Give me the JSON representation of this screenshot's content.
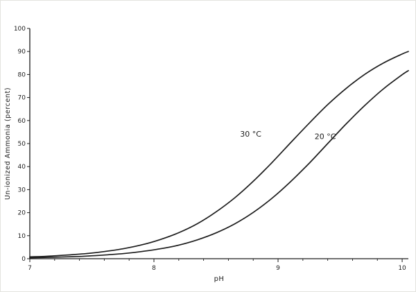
{
  "page": {
    "background": "#ffffff",
    "ink": "#1b1b1b"
  },
  "chart_data": {
    "type": "line",
    "title": "",
    "xlabel": "pH",
    "ylabel": "Un-ionized Ammonia (percent)",
    "xlim": [
      7.0,
      10.05
    ],
    "ylim": [
      0,
      100
    ],
    "x_ticks": [
      7,
      8,
      9,
      10
    ],
    "x_minor_tick_step": 0.2,
    "y_ticks": [
      0,
      10,
      20,
      30,
      40,
      50,
      60,
      70,
      80,
      90,
      100
    ],
    "grid": false,
    "legend_position": "inline labels beside curves",
    "x": [
      7.0,
      7.15,
      7.3,
      7.45,
      7.6,
      7.75,
      7.9,
      8.05,
      8.2,
      8.35,
      8.5,
      8.65,
      8.8,
      8.95,
      9.1,
      9.25,
      9.4,
      9.55,
      9.7,
      9.85,
      10.0,
      10.05
    ],
    "series": [
      {
        "name": "30 °C",
        "values": [
          0.8,
          1.1,
          1.6,
          2.2,
          3.1,
          4.3,
          6.0,
          8.3,
          11.3,
          15.2,
          20.3,
          26.4,
          33.6,
          41.7,
          50.3,
          58.8,
          66.9,
          74.0,
          80.1,
          85.0,
          88.9,
          90.0
        ],
        "label": {
          "text": "30 °C",
          "x": 8.78,
          "y": 53
        }
      },
      {
        "name": "20 °C",
        "values": [
          0.4,
          0.6,
          0.8,
          1.1,
          1.6,
          2.2,
          3.1,
          4.3,
          5.9,
          8.2,
          11.2,
          15.1,
          20.1,
          26.2,
          33.4,
          41.4,
          50.0,
          58.6,
          66.6,
          73.8,
          79.9,
          81.7
        ],
        "label": {
          "text": "20 °C",
          "x": 9.38,
          "y": 52
        }
      }
    ]
  }
}
